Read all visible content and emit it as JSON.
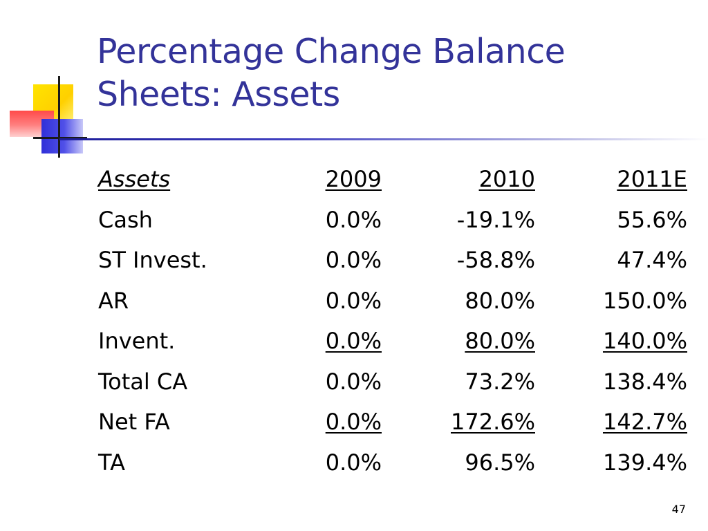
{
  "slide": {
    "title_line1": "Percentage Change Balance",
    "title_line2": "Sheets: Assets",
    "page_number": "47",
    "title_color": "#333399",
    "accent_colors": {
      "yellow": "#ffd000",
      "red": "#ff4a4a",
      "blue": "#3030d8"
    }
  },
  "table": {
    "headers": {
      "label": "Assets",
      "y2009": "2009",
      "y2010": "2010",
      "y2011": "2011E"
    },
    "rows": [
      {
        "label": "Cash",
        "y2009": "0.0%",
        "y2010": "-19.1%",
        "y2011": "55.6%",
        "underline": false
      },
      {
        "label": "ST Invest.",
        "y2009": "0.0%",
        "y2010": "-58.8%",
        "y2011": "47.4%",
        "underline": false
      },
      {
        "label": "AR",
        "y2009": "0.0%",
        "y2010": "80.0%",
        "y2011": "150.0%",
        "underline": false
      },
      {
        "label": "Invent.",
        "y2009": "0.0%",
        "y2010": "80.0%",
        "y2011": "140.0%",
        "underline": true
      },
      {
        "label": "Total CA",
        "y2009": "0.0%",
        "y2010": "73.2%",
        "y2011": "138.4%",
        "underline": false
      },
      {
        "label": "Net FA",
        "y2009": "0.0%",
        "y2010": "172.6%",
        "y2011": "142.7%",
        "underline": true
      },
      {
        "label": "TA",
        "y2009": "0.0%",
        "y2010": "96.5%",
        "y2011": "139.4%",
        "underline": false
      }
    ]
  }
}
